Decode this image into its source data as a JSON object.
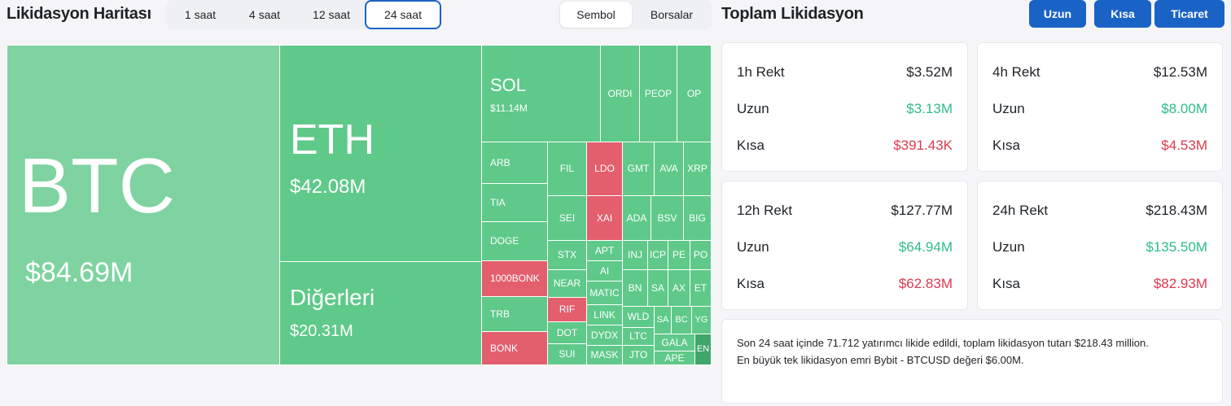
{
  "header": {
    "title": "Likidasyon Haritası",
    "timeframes": [
      "1 saat",
      "4 saat",
      "12 saat",
      "24 saat"
    ],
    "active_timeframe": "24 saat",
    "group_options": [
      "Sembol",
      "Borsalar"
    ],
    "active_group": "Sembol"
  },
  "summary": {
    "title": "Toplam Likidasyon",
    "buttons": [
      "Uzun",
      "Kısa",
      "Ticaret"
    ],
    "cards": [
      {
        "label": "1h Rekt",
        "total": "$3.52M",
        "long_label": "Uzun",
        "long": "$3.13M",
        "short_label": "Kısa",
        "short": "$391.43K"
      },
      {
        "label": "4h Rekt",
        "total": "$12.53M",
        "long_label": "Uzun",
        "long": "$8.00M",
        "short_label": "Kısa",
        "short": "$4.53M"
      },
      {
        "label": "12h Rekt",
        "total": "$127.77M",
        "long_label": "Uzun",
        "long": "$64.94M",
        "short_label": "Kısa",
        "short": "$62.83M"
      },
      {
        "label": "24h Rekt",
        "total": "$218.43M",
        "long_label": "Uzun",
        "long": "$135.50M",
        "short_label": "Kısa",
        "short": "$82.93M"
      }
    ],
    "info_line1": "Son 24 saat içinde 71.712 yatırımcı likide edildi, toplam likidasyon tutarı $218.43 million.",
    "info_line2": "En büyük tek likidasyon emri Bybit - BTCUSD değeri $6.00M."
  },
  "colors": {
    "accent": "#1a63c6",
    "long_green": "#2ebd85",
    "short_red": "#e0384d",
    "tile_green": "#5fc98a",
    "tile_red": "#e35f6e"
  },
  "treemap": {
    "btc": {
      "name": "BTC",
      "value": "$84.69M"
    },
    "eth": {
      "name": "ETH",
      "value": "$42.08M"
    },
    "others": {
      "name": "Diğerleri",
      "value": "$20.31M"
    },
    "sol": {
      "name": "SOL",
      "value": "$11.14M"
    },
    "small": [
      "ORDI",
      "PEOP",
      "OP",
      "ARB",
      "FIL",
      "LDO",
      "GMT",
      "AVA",
      "XRP",
      "TIA",
      "SEI",
      "XAI",
      "ADA",
      "BSV",
      "BIG",
      "DOGE",
      "STX",
      "APT",
      "INJ",
      "ICP",
      "PE",
      "PO",
      "AI",
      "1000BONK",
      "NEAR",
      "MATIC",
      "BN",
      "SA",
      "AX",
      "ET",
      "RIF",
      "LINK",
      "WLD",
      "SA",
      "BC",
      "YG",
      "TRB",
      "DOT",
      "DYDX",
      "LTC",
      "GALA",
      "BONK",
      "SUI",
      "MASK",
      "JTO",
      "APE",
      "EN"
    ]
  }
}
